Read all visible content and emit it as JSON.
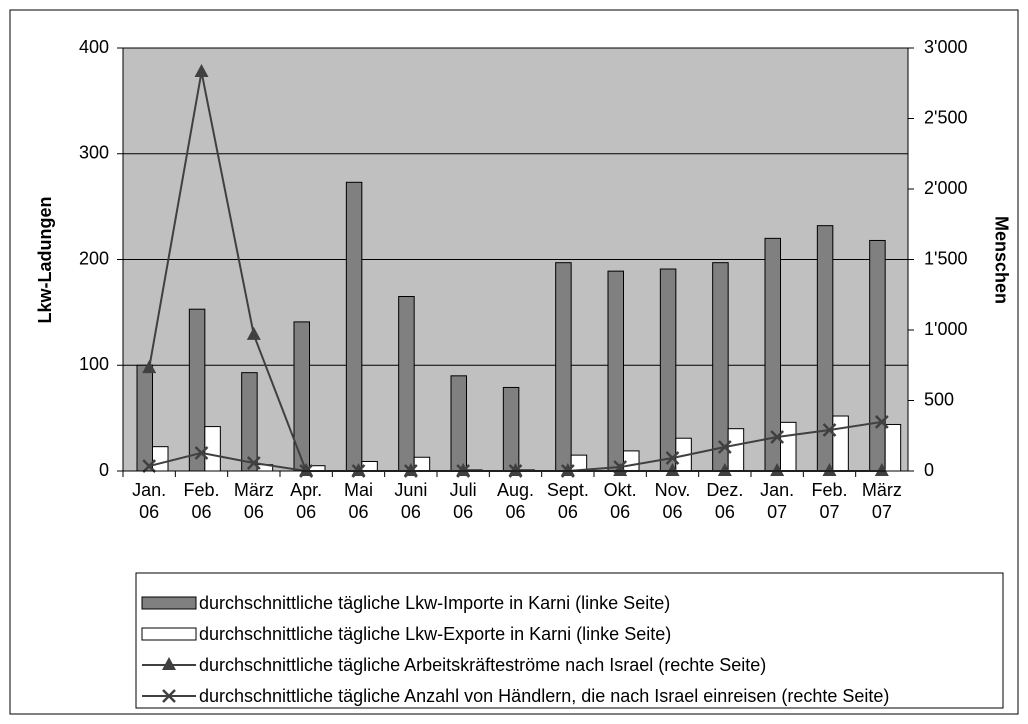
{
  "chart_data": {
    "type": "bar-line",
    "categories": [
      "Jan. 06",
      "Feb. 06",
      "März 06",
      "Apr. 06",
      "Mai 06",
      "Juni 06",
      "Juli 06",
      "Aug. 06",
      "Sept. 06",
      "Okt. 06",
      "Nov. 06",
      "Dez. 06",
      "Jan. 07",
      "Feb. 07",
      "März 07"
    ],
    "ylabel": "Lkw-Ladungen",
    "y2label": "Menschen",
    "ylim": [
      0,
      400
    ],
    "yticks": [
      0,
      100,
      200,
      300,
      400
    ],
    "y2lim": [
      0,
      3000
    ],
    "y2ticks": [
      0,
      500,
      {
        "value": 1000,
        "label": "1'000"
      },
      {
        "value": 1500,
        "label": "1'500"
      },
      {
        "value": 2000,
        "label": "2'000"
      },
      {
        "value": 2500,
        "label": "2'500"
      },
      {
        "value": 3000,
        "label": "3'000"
      }
    ],
    "grid": true,
    "legend": "bottom",
    "series": [
      {
        "name": "durchschnittliche tägliche Lkw-Importe in Karni (linke Seite)",
        "type": "bar",
        "color": "#808080",
        "values": [
          100,
          153,
          93,
          141,
          273,
          165,
          90,
          79,
          197,
          189,
          191,
          197,
          220,
          232,
          218
        ]
      },
      {
        "name": "durchschnittliche tägliche Lkw-Exporte in Karni (linke Seite)",
        "type": "bar",
        "color": "#ffffff",
        "values": [
          23,
          42,
          6,
          5,
          9,
          13,
          1,
          1,
          15,
          19,
          31,
          40,
          46,
          52,
          44
        ]
      },
      {
        "name": "durchschnittliche tägliche Arbeitskräfteströme nach Israel (rechte Seite)",
        "type": "line",
        "axis": "y2",
        "marker": "triangle",
        "color": "#404040",
        "values": [
          730,
          2830,
          965,
          0,
          0,
          0,
          0,
          0,
          0,
          0,
          0,
          0,
          0,
          0,
          0
        ]
      },
      {
        "name": "durchschnittliche tägliche Anzahl von Händlern, die nach Israel einreisen (rechte Seite)",
        "type": "line",
        "axis": "y2",
        "marker": "x",
        "color": "#404040",
        "values": [
          35,
          128,
          57,
          0,
          0,
          0,
          0,
          0,
          0,
          28,
          92,
          170,
          241,
          291,
          348
        ]
      }
    ]
  }
}
